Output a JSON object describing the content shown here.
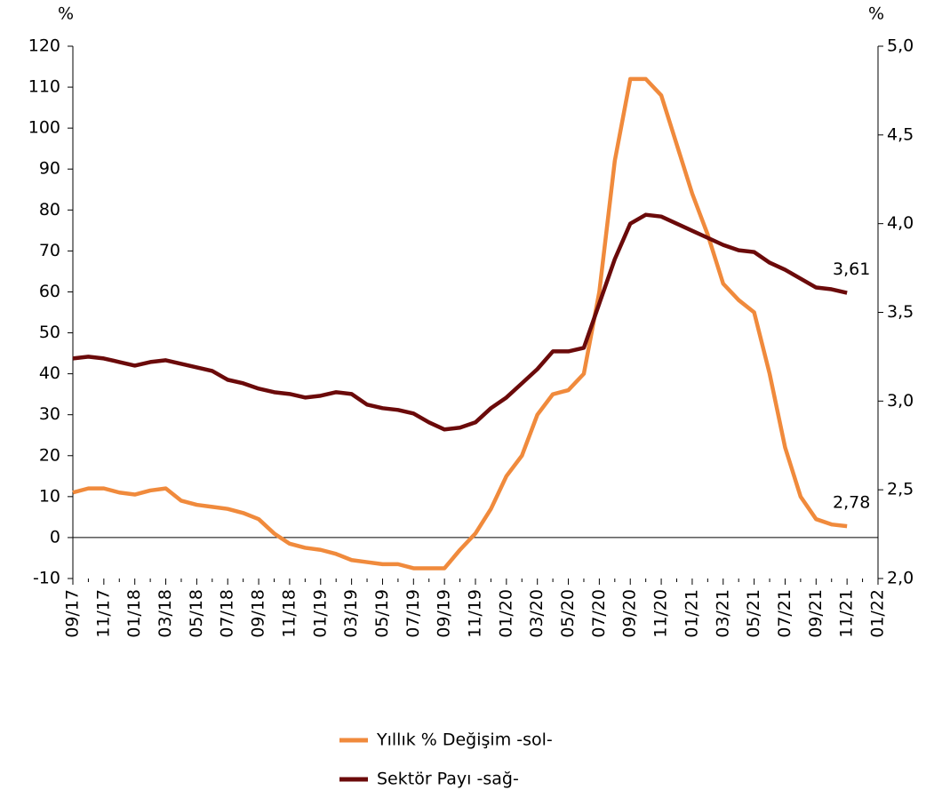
{
  "chart_data": {
    "type": "line",
    "ylabel": "%",
    "y2label": "%",
    "categories": [
      "09/17",
      null,
      "11/17",
      null,
      "01/18",
      null,
      "03/18",
      null,
      "05/18",
      null,
      "07/18",
      null,
      "09/18",
      null,
      "11/18",
      null,
      "01/19",
      null,
      "03/19",
      null,
      "05/19",
      null,
      "07/19",
      null,
      "09/19",
      null,
      "11/19",
      null,
      "01/20",
      null,
      "03/20",
      null,
      "05/20",
      null,
      "07/20",
      null,
      "09/20",
      null,
      "11/20",
      null,
      "01/21",
      null,
      "03/21",
      null,
      "05/21",
      null,
      "07/21",
      null,
      "09/21",
      null,
      "11/21",
      null,
      "01/22"
    ],
    "series": [
      {
        "name": "Yıllık % Değişim -sol-",
        "color": "#f08a3c",
        "axis": "y",
        "values": [
          11,
          12,
          12,
          11,
          10.5,
          11.5,
          12,
          9,
          8,
          7.5,
          7,
          6,
          4.5,
          1,
          -1.5,
          -2.5,
          -3,
          -4,
          -5.5,
          -6,
          -6.5,
          -6.5,
          -7.5,
          -7.5,
          -7.5,
          -3,
          1,
          7,
          15,
          20,
          30,
          35,
          36,
          40,
          60,
          92,
          112,
          112,
          108,
          96,
          84,
          74,
          62,
          58,
          55,
          40,
          22,
          10,
          4.5,
          3.2,
          2.78,
          null,
          null
        ],
        "value_labels": [
          null,
          null,
          null,
          null,
          null,
          null,
          null,
          null,
          null,
          null,
          null,
          null,
          null,
          null,
          null,
          null,
          null,
          null,
          null,
          null,
          null,
          null,
          null,
          null,
          null,
          null,
          null,
          null,
          null,
          null,
          null,
          null,
          null,
          null,
          null,
          null,
          null,
          null,
          null,
          null,
          null,
          null,
          null,
          null,
          null,
          null,
          null,
          null,
          null,
          null,
          "2,78",
          null,
          null
        ]
      },
      {
        "name": "Sektör Payı -sağ-",
        "color": "#6b0a0a",
        "axis": "y2",
        "values": [
          3.24,
          3.25,
          3.24,
          3.22,
          3.2,
          3.22,
          3.23,
          3.21,
          3.19,
          3.17,
          3.12,
          3.1,
          3.07,
          3.05,
          3.04,
          3.02,
          3.03,
          3.05,
          3.04,
          2.98,
          2.96,
          2.95,
          2.93,
          2.88,
          2.84,
          2.85,
          2.88,
          2.96,
          3.02,
          3.1,
          3.18,
          3.28,
          3.28,
          3.3,
          3.55,
          3.8,
          4.0,
          4.05,
          4.04,
          4.0,
          3.96,
          3.92,
          3.88,
          3.85,
          3.84,
          3.78,
          3.74,
          3.69,
          3.64,
          3.63,
          3.61,
          null,
          null
        ],
        "value_labels": [
          null,
          null,
          null,
          null,
          null,
          null,
          null,
          null,
          null,
          null,
          null,
          null,
          null,
          null,
          null,
          null,
          null,
          null,
          null,
          null,
          null,
          null,
          null,
          null,
          null,
          null,
          null,
          null,
          null,
          null,
          null,
          null,
          null,
          null,
          null,
          null,
          null,
          null,
          null,
          null,
          null,
          null,
          null,
          null,
          null,
          null,
          null,
          null,
          null,
          null,
          "3,61",
          null,
          null
        ]
      }
    ],
    "ylim": [
      -10,
      120
    ],
    "yticks": [
      -10,
      0,
      10,
      20,
      30,
      40,
      50,
      60,
      70,
      80,
      90,
      100,
      110,
      120
    ],
    "y2lim": [
      2,
      5
    ],
    "y2ticks": [
      {
        "value": 2,
        "label": "2,0"
      },
      {
        "value": 2.5,
        "label": "2,5"
      },
      {
        "value": 3,
        "label": "3,0"
      },
      {
        "value": 3.5,
        "label": "3,5"
      },
      {
        "value": 4,
        "label": "4,0"
      },
      {
        "value": 4.5,
        "label": "4,5"
      },
      {
        "value": 5,
        "label": "5,0"
      }
    ],
    "legend": "bottom"
  }
}
